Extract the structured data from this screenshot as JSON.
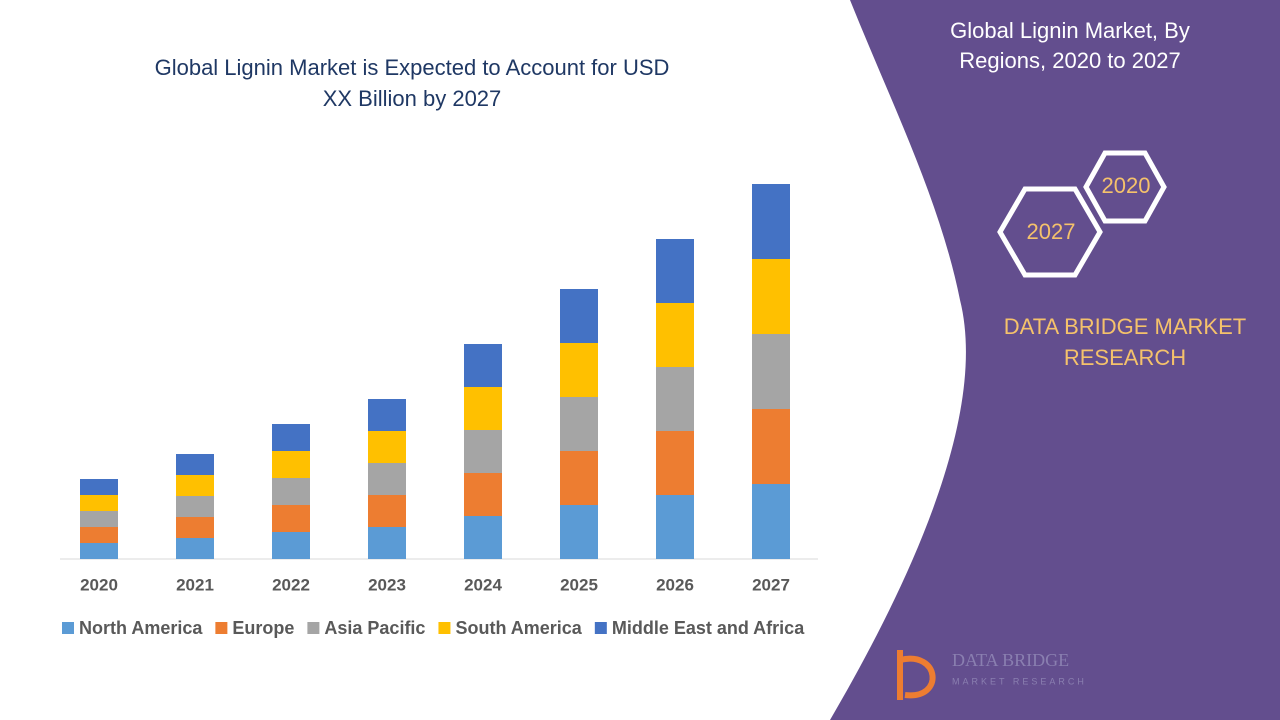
{
  "chart_data": {
    "type": "stacked-bar",
    "title": "Global Lignin Market is Expected to Account for USD XX Billion by 2027",
    "categories": [
      "2020",
      "2021",
      "2022",
      "2023",
      "2024",
      "2025",
      "2026",
      "2027"
    ],
    "series": [
      {
        "name": "North America",
        "color": "#5b9bd5",
        "values": [
          16,
          21,
          27,
          32,
          43,
          54,
          64,
          75
        ]
      },
      {
        "name": "Europe",
        "color": "#ed7d31",
        "values": [
          16,
          21,
          27,
          32,
          43,
          54,
          64,
          75
        ]
      },
      {
        "name": "Asia Pacific",
        "color": "#a5a5a5",
        "values": [
          16,
          21,
          27,
          32,
          43,
          54,
          64,
          75
        ]
      },
      {
        "name": "South America",
        "color": "#ffc000",
        "values": [
          16,
          21,
          27,
          32,
          43,
          54,
          64,
          75
        ]
      },
      {
        "name": "Middle East and Africa",
        "color": "#4472c4",
        "values": [
          16,
          21,
          27,
          32,
          43,
          54,
          64,
          75
        ]
      }
    ],
    "legend": "bottom"
  },
  "panel": {
    "title": "Global Lignin Market, By Regions, 2020 to 2027",
    "hexagons": [
      "2020",
      "2027"
    ],
    "brand": "DATA BRIDGE MARKET RESEARCH",
    "logo": {
      "name": "DATA BRIDGE",
      "tagline": "MARKET RESEARCH"
    }
  }
}
